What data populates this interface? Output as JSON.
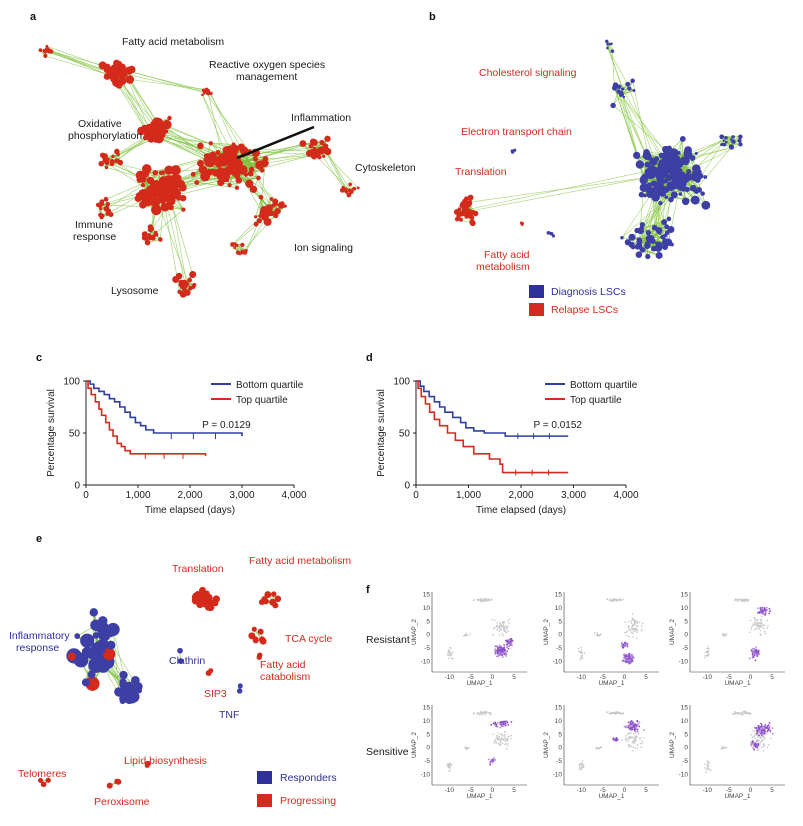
{
  "panels": {
    "a": {
      "letter": "a",
      "labels": {
        "fatty_acid": "Fatty acid metabolism",
        "ros": "Reactive oxygen species",
        "ros2": "management",
        "oxphos": "Oxidative",
        "oxphos2": "phosphorylation",
        "inflammation": "Inflammation",
        "cytoskeleton": "Cytoskeleton",
        "immune": "Immune",
        "immune2": "response",
        "ion": "Ion signaling",
        "lysosome": "Lysosome"
      }
    },
    "b": {
      "letter": "b",
      "labels": {
        "cholesterol": "Cholesterol signaling",
        "etc": "Electron transport chain",
        "translation": "Translation",
        "fatty": "Fatty acid",
        "fatty2": "metabolism"
      },
      "legend": [
        {
          "label": "Diagnosis LSCs",
          "color": "#2f2f9a"
        },
        {
          "label": "Relapse LSCs",
          "color": "#d22b1f"
        }
      ]
    },
    "e": {
      "letter": "e",
      "labels": {
        "translation": "Translation",
        "fatty": "Fatty acid metabolism",
        "inflammatory": "Inflammatory",
        "inflammatory2": "response",
        "tca": "TCA cycle",
        "clathrin": "Clathrin",
        "fa_cat": "Fatty acid",
        "fa_cat2": "catabolism",
        "sip3": "SIP3",
        "tnf": "TNF",
        "lipid": "Lipid biosynthesis",
        "telomeres": "Telomeres",
        "peroxisome": "Peroxisome"
      },
      "legend": [
        {
          "label": "Responders",
          "color": "#2f2f9a"
        },
        {
          "label": "Progressing",
          "color": "#d22b1f"
        }
      ]
    },
    "f": {
      "letter": "f",
      "row_labels": [
        "Resistant",
        "Sensitive"
      ],
      "x_axis_label": "UMAP_1",
      "y_axis_label": "UMAP_2",
      "x_ticks": [
        "-10",
        "-5",
        "0",
        "5"
      ],
      "y_ticks": [
        "15",
        "10",
        "5",
        "0",
        "-5",
        "-10"
      ]
    }
  },
  "chart_data": [
    {
      "id": "c",
      "type": "line",
      "panel_letter": "c",
      "title": "",
      "xlabel": "Time elapsed (days)",
      "ylabel": "Percentage survival",
      "xlim": [
        0,
        4000
      ],
      "ylim": [
        0,
        100
      ],
      "x_ticks": [
        "0",
        "1,000",
        "2,000",
        "3,000",
        "4,000"
      ],
      "y_ticks": [
        "0",
        "50",
        "100"
      ],
      "annotation": "P = 0.0129",
      "series": [
        {
          "name": "Bottom quartile",
          "color": "#2f3f9f",
          "points": [
            [
              0,
              100
            ],
            [
              80,
              97
            ],
            [
              150,
              93
            ],
            [
              250,
              90
            ],
            [
              350,
              87
            ],
            [
              450,
              83
            ],
            [
              550,
              80
            ],
            [
              650,
              75
            ],
            [
              750,
              70
            ],
            [
              850,
              65
            ],
            [
              950,
              60
            ],
            [
              1050,
              57
            ],
            [
              1150,
              53
            ],
            [
              1300,
              50
            ],
            [
              3000,
              47
            ]
          ]
        },
        {
          "name": "Top quartile",
          "color": "#d22b1f",
          "points": [
            [
              0,
              100
            ],
            [
              40,
              93
            ],
            [
              100,
              87
            ],
            [
              180,
              80
            ],
            [
              250,
              73
            ],
            [
              300,
              67
            ],
            [
              380,
              60
            ],
            [
              450,
              53
            ],
            [
              520,
              47
            ],
            [
              600,
              40
            ],
            [
              680,
              37
            ],
            [
              750,
              33
            ],
            [
              850,
              30
            ],
            [
              2300,
              28
            ]
          ]
        }
      ]
    },
    {
      "id": "d",
      "type": "line",
      "panel_letter": "d",
      "title": "",
      "xlabel": "Time elapsed (days)",
      "ylabel": "Percentage survival",
      "xlim": [
        0,
        4000
      ],
      "ylim": [
        0,
        100
      ],
      "x_ticks": [
        "0",
        "1,000",
        "2,000",
        "3,000",
        "4,000"
      ],
      "y_ticks": [
        "0",
        "50",
        "100"
      ],
      "annotation": "P = 0.0152",
      "series": [
        {
          "name": "Bottom quartile",
          "color": "#2f3f9f",
          "points": [
            [
              0,
              100
            ],
            [
              80,
              95
            ],
            [
              150,
              90
            ],
            [
              250,
              85
            ],
            [
              350,
              80
            ],
            [
              450,
              75
            ],
            [
              550,
              70
            ],
            [
              700,
              65
            ],
            [
              850,
              60
            ],
            [
              950,
              55
            ],
            [
              1100,
              52
            ],
            [
              1300,
              50
            ],
            [
              1700,
              47
            ],
            [
              2900,
              47
            ]
          ]
        },
        {
          "name": "Top quartile",
          "color": "#d22b1f",
          "points": [
            [
              0,
              100
            ],
            [
              40,
              93
            ],
            [
              100,
              85
            ],
            [
              180,
              78
            ],
            [
              260,
              70
            ],
            [
              350,
              63
            ],
            [
              450,
              57
            ],
            [
              600,
              50
            ],
            [
              750,
              43
            ],
            [
              900,
              37
            ],
            [
              1100,
              30
            ],
            [
              1400,
              25
            ],
            [
              1600,
              20
            ],
            [
              1650,
              12
            ],
            [
              2900,
              12
            ]
          ]
        }
      ]
    }
  ]
}
